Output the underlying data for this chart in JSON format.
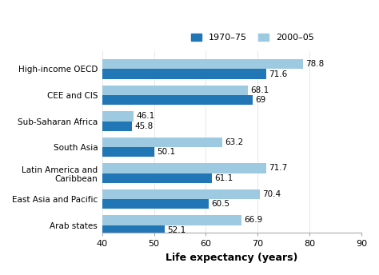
{
  "categories": [
    "High-income OECD",
    "CEE and CIS",
    "Sub-Saharan Africa",
    "South Asia",
    "Latin America and\nCaribbean",
    "East Asia and Pacific",
    "Arab states"
  ],
  "values_1970": [
    71.6,
    69.0,
    45.8,
    50.1,
    61.1,
    60.5,
    52.1
  ],
  "values_2000": [
    78.8,
    68.1,
    46.1,
    63.2,
    71.7,
    70.4,
    66.9
  ],
  "labels_1970": [
    "71.6",
    "69",
    "45.8",
    "50.1",
    "61.1",
    "60.5",
    "52.1"
  ],
  "labels_2000": [
    "78.8",
    "68.1",
    "46.1",
    "63.2",
    "71.7",
    "70.4",
    "66.9"
  ],
  "color_1970": "#2176b5",
  "color_2000": "#9ecae1",
  "xlim": [
    40,
    90
  ],
  "xticks": [
    40,
    50,
    60,
    70,
    80,
    90
  ],
  "xlabel": "Life expectancy (years)",
  "legend_labels": [
    "1970–75",
    "2000–05"
  ],
  "bar_height": 0.38,
  "background_color": "#ffffff"
}
